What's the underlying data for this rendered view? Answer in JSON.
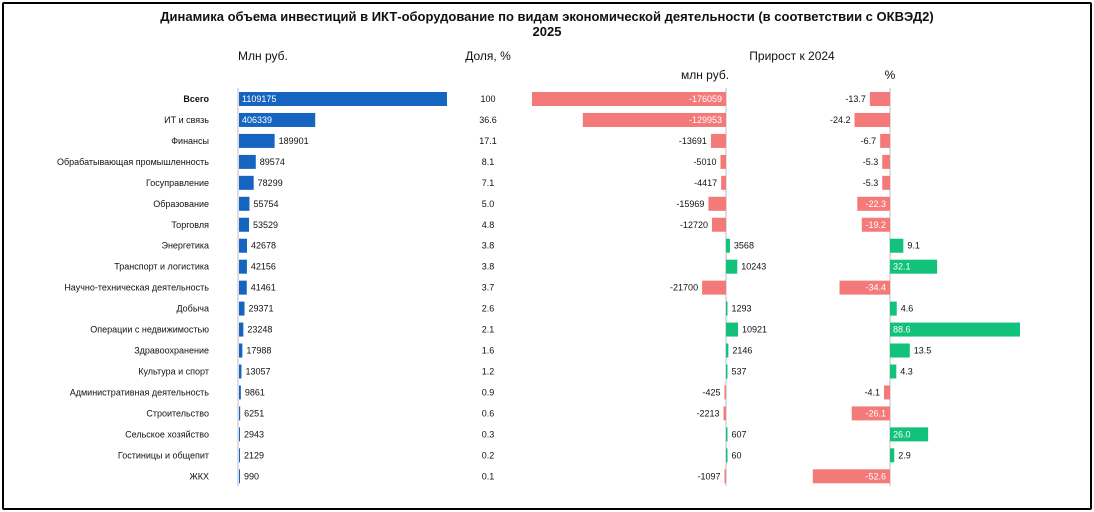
{
  "chart_data": {
    "type": "bar",
    "title": "Динамика объема инвестиций в ИКТ-оборудование по видам экономической деятельности (в соответствии с ОКВЭД2)",
    "subtitle": "2025",
    "headers": {
      "volume": "Млн руб.",
      "share": "Доля, %",
      "growth": "Прирост к 2024",
      "growth_abs": "млн руб.",
      "growth_pct": "%"
    },
    "colors": {
      "volume": "#1565c0",
      "negative": "#f47a7a",
      "positive": "#12c27a"
    },
    "categories": [
      "Всего",
      "ИТ и связь",
      "Финансы",
      "Обрабатывающая промышленность",
      "Госуправление",
      "Образование",
      "Торговля",
      "Энергетика",
      "Транспорт и логистика",
      "Научно-техническая деятельность",
      "Добыча",
      "Операции с недвижимостью",
      "Здравоохранение",
      "Культура и спорт",
      "Административная деятельность",
      "Строительство",
      "Сельское хозяйство",
      "Гостиницы и общепит",
      "ЖКХ"
    ],
    "series": [
      {
        "name": "Млн руб.",
        "values": [
          1109175,
          406339,
          189901,
          89574,
          78299,
          55754,
          53529,
          42678,
          42156,
          41461,
          29371,
          23248,
          17988,
          13057,
          9861,
          6251,
          2943,
          2129,
          990
        ],
        "labels": [
          "1109175",
          "406339",
          "189901",
          "89574",
          "78299",
          "55754",
          "53529",
          "42678",
          "42156",
          "41461",
          "29371",
          "23248",
          "17988",
          "13057",
          "9861",
          "6251",
          "2943",
          "2129",
          "990"
        ]
      },
      {
        "name": "Доля, %",
        "values": [
          100,
          36.6,
          17.1,
          8.1,
          7.1,
          5.0,
          4.8,
          3.8,
          3.8,
          3.7,
          2.6,
          2.1,
          1.6,
          1.2,
          0.9,
          0.6,
          0.3,
          0.2,
          0.1
        ],
        "labels": [
          "100",
          "36.6",
          "17.1",
          "8.1",
          "7.1",
          "5.0",
          "4.8",
          "3.8",
          "3.8",
          "3.7",
          "2.6",
          "2.1",
          "1.6",
          "1.2",
          "0.9",
          "0.6",
          "0.3",
          "0.2",
          "0.1"
        ]
      },
      {
        "name": "млн руб.",
        "values": [
          -176059,
          -129953,
          -13691,
          -5010,
          -4417,
          -15969,
          -12720,
          3568,
          10243,
          -21700,
          1293,
          10921,
          2146,
          537,
          -425,
          -2213,
          607,
          60,
          -1097
        ],
        "labels": [
          "-176059",
          "-129953",
          "-13691",
          "-5010",
          "-4417",
          "-15969",
          "-12720",
          "3568",
          "10243",
          "-21700",
          "1293",
          "10921",
          "2146",
          "537",
          "-425",
          "-2213",
          "607",
          "60",
          "-1097"
        ]
      },
      {
        "name": "%",
        "values": [
          -13.7,
          -24.2,
          -6.7,
          -5.3,
          -5.3,
          -22.3,
          -19.2,
          9.1,
          32.1,
          -34.4,
          4.6,
          88.6,
          13.5,
          4.3,
          -4.1,
          -26.1,
          26.0,
          2.9,
          -52.6
        ],
        "labels": [
          "-13.7",
          "-24.2",
          "-6.7",
          "-5.3",
          "-5.3",
          "-22.3",
          "-19.2",
          "9.1",
          "32.1",
          "-34.4",
          "4.6",
          "88.6",
          "13.5",
          "4.3",
          "-4.1",
          "-26.1",
          "26.0",
          "2.9",
          "-52.6"
        ]
      }
    ],
    "inside_label_rows": {
      "volume": [
        0,
        1
      ],
      "growth_abs": [
        0,
        1
      ],
      "growth_pct": [
        5,
        6,
        8,
        9,
        11,
        15,
        16,
        18
      ]
    }
  }
}
